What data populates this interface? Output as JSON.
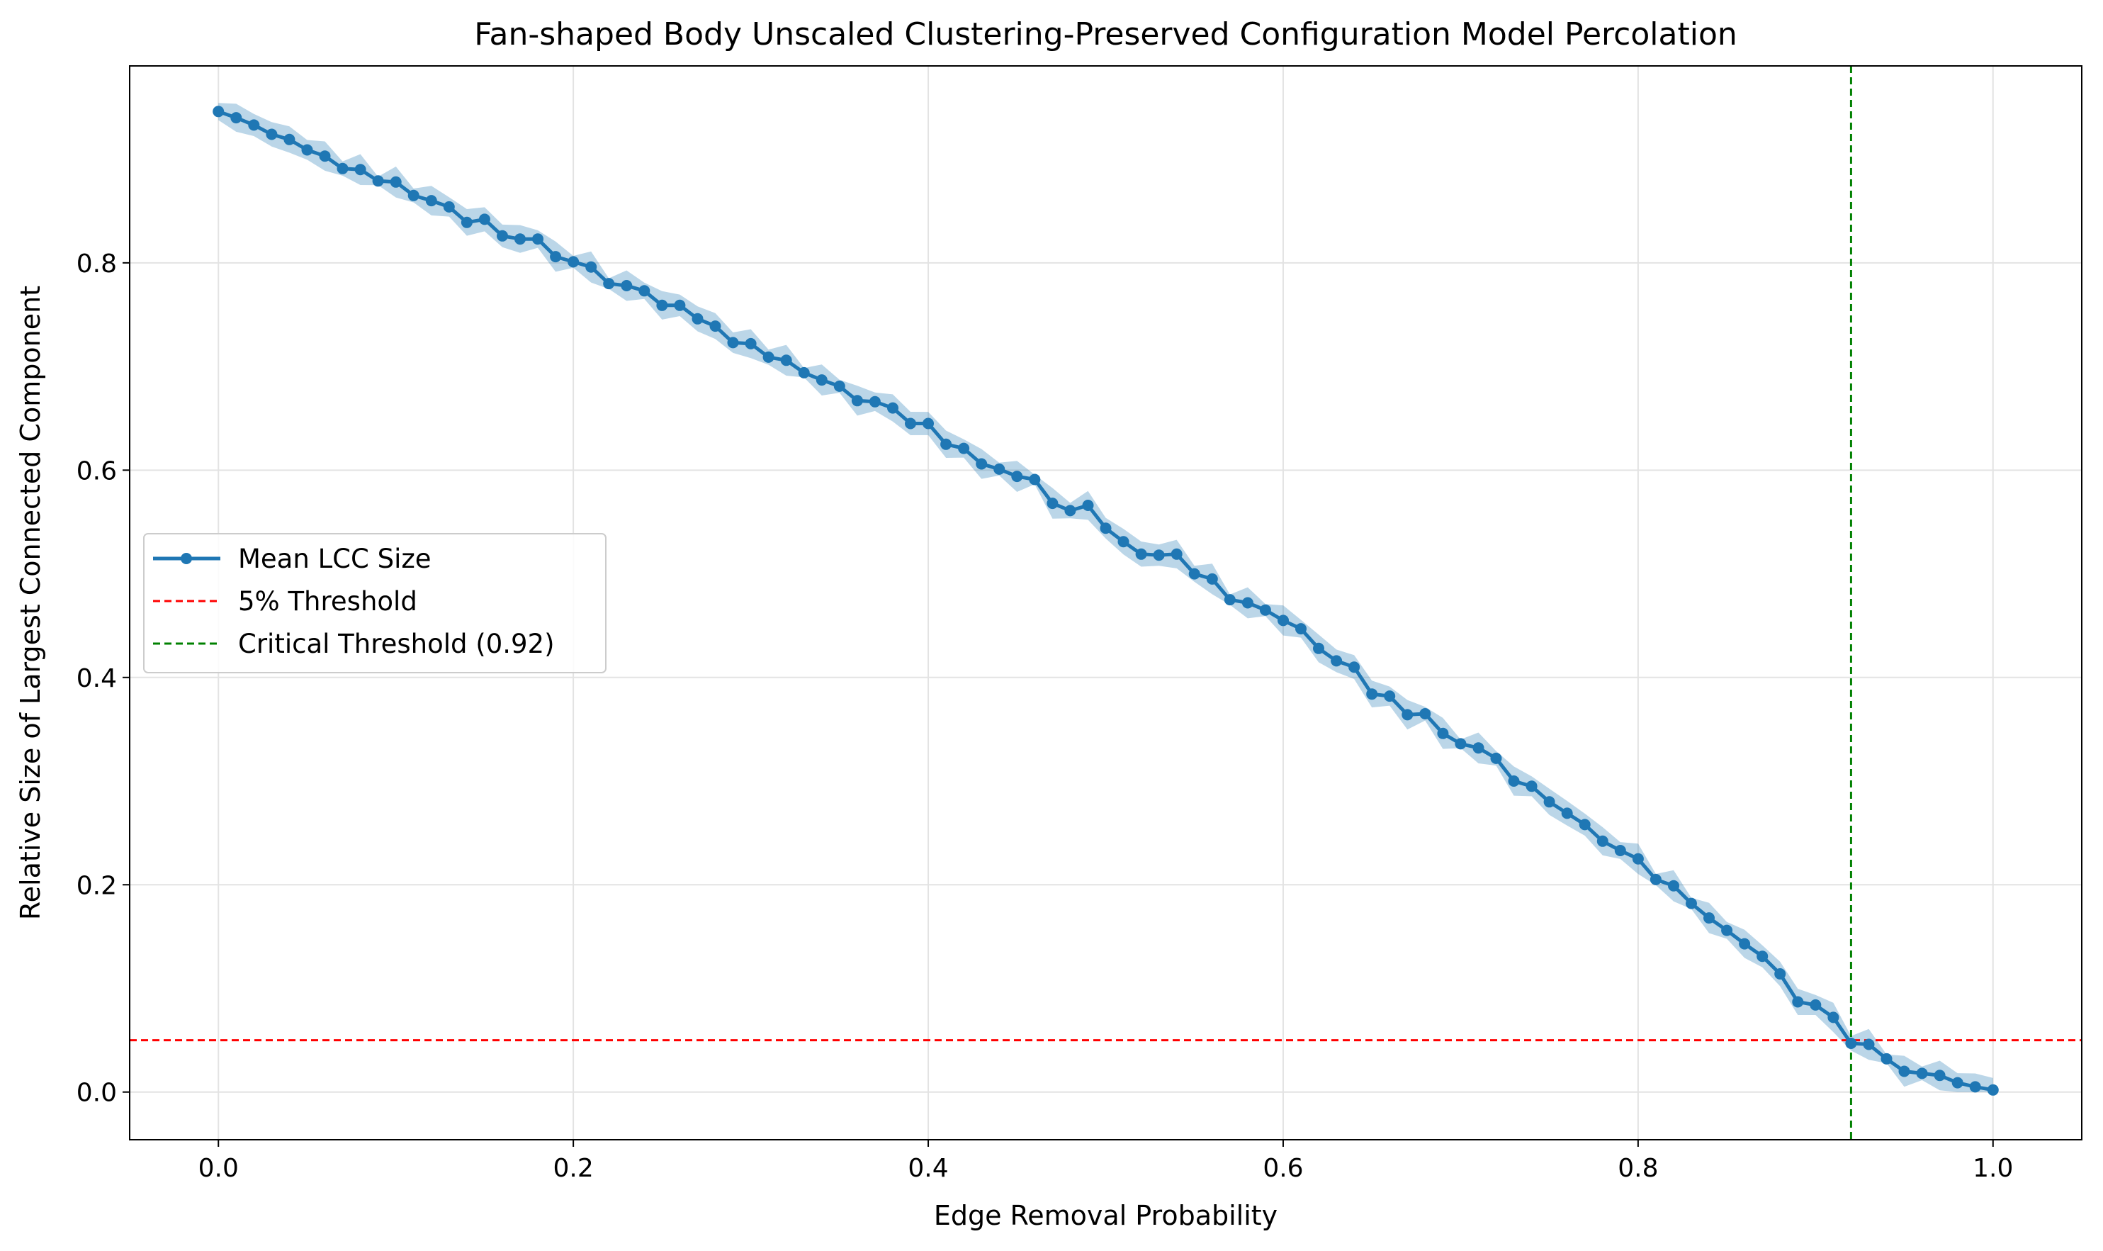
{
  "chart_data": {
    "type": "line",
    "title": "Fan-shaped Body Unscaled Clustering-Preserved Configuration Model Percolation",
    "xlabel": "Edge Removal Probability",
    "ylabel": "Relative Size of Largest Connected Component",
    "xlim": [
      -0.05,
      1.05
    ],
    "ylim": [
      -0.046,
      0.99
    ],
    "xticks": [
      "0.0",
      "0.2",
      "0.4",
      "0.6",
      "0.8",
      "1.0"
    ],
    "yticks": [
      "0.0",
      "0.2",
      "0.4",
      "0.6",
      "0.8"
    ],
    "grid": true,
    "legend_position": "center-left",
    "colors": {
      "series": "#1f77b4",
      "band": "#1f77b4",
      "threshold": "#ff0000",
      "critical": "#008000",
      "grid": "#e3e3e3"
    },
    "series": [
      {
        "name": "Mean LCC Size",
        "x": [
          0.0,
          0.01,
          0.02,
          0.03,
          0.04,
          0.05,
          0.06,
          0.07,
          0.08,
          0.09,
          0.1,
          0.11,
          0.12,
          0.13,
          0.14,
          0.15,
          0.16,
          0.17,
          0.18,
          0.19,
          0.2,
          0.21,
          0.22,
          0.23,
          0.24,
          0.25,
          0.26,
          0.27,
          0.28,
          0.29,
          0.3,
          0.31,
          0.32,
          0.33,
          0.34,
          0.35,
          0.36,
          0.37,
          0.38,
          0.39,
          0.4,
          0.41,
          0.42,
          0.43,
          0.44,
          0.45,
          0.46,
          0.47,
          0.48,
          0.49,
          0.5,
          0.51,
          0.52,
          0.53,
          0.54,
          0.55,
          0.56,
          0.57,
          0.58,
          0.59,
          0.6,
          0.61,
          0.62,
          0.63,
          0.64,
          0.65,
          0.66,
          0.67,
          0.68,
          0.69,
          0.7,
          0.71,
          0.72,
          0.73,
          0.74,
          0.75,
          0.76,
          0.77,
          0.78,
          0.79,
          0.8,
          0.81,
          0.82,
          0.83,
          0.84,
          0.85,
          0.86,
          0.87,
          0.88,
          0.89,
          0.9,
          0.91,
          0.92,
          0.93,
          0.94,
          0.95,
          0.96,
          0.97,
          0.98,
          0.99,
          1.0
        ],
        "y": [
          0.946,
          0.94,
          0.933,
          0.924,
          0.919,
          0.909,
          0.903,
          0.891,
          0.89,
          0.879,
          0.878,
          0.865,
          0.86,
          0.854,
          0.839,
          0.842,
          0.826,
          0.823,
          0.823,
          0.806,
          0.801,
          0.796,
          0.78,
          0.778,
          0.773,
          0.759,
          0.759,
          0.746,
          0.739,
          0.723,
          0.722,
          0.709,
          0.706,
          0.694,
          0.687,
          0.681,
          0.667,
          0.666,
          0.66,
          0.645,
          0.645,
          0.625,
          0.621,
          0.606,
          0.601,
          0.594,
          0.591,
          0.568,
          0.561,
          0.566,
          0.544,
          0.531,
          0.519,
          0.518,
          0.519,
          0.5,
          0.495,
          0.475,
          0.472,
          0.465,
          0.455,
          0.447,
          0.428,
          0.416,
          0.41,
          0.384,
          0.382,
          0.364,
          0.365,
          0.346,
          0.336,
          0.332,
          0.322,
          0.3,
          0.295,
          0.28,
          0.269,
          0.258,
          0.242,
          0.233,
          0.225,
          0.205,
          0.199,
          0.182,
          0.168,
          0.156,
          0.143,
          0.131,
          0.114,
          0.087,
          0.084,
          0.072,
          0.047,
          0.046,
          0.032,
          0.02,
          0.018,
          0.016,
          0.009,
          0.005,
          0.002
        ]
      }
    ],
    "reference_lines": [
      {
        "name": "5% Threshold",
        "orientation": "horizontal",
        "value": 0.05
      },
      {
        "name": "Critical Threshold (0.92)",
        "orientation": "vertical",
        "value": 0.92
      }
    ]
  }
}
